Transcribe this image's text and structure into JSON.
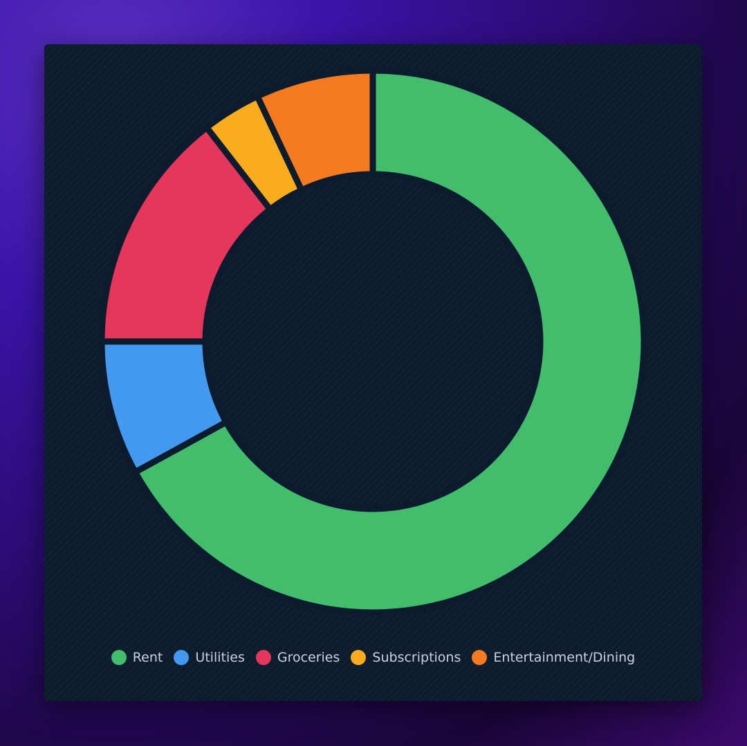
{
  "chart_data": {
    "type": "donut",
    "categories": [
      "Rent",
      "Utilities",
      "Groceries",
      "Subscriptions",
      "Entertainment/Dining"
    ],
    "values": [
      67,
      8,
      14.5,
      3.5,
      7
    ],
    "colors": [
      "#41bd6c",
      "#4299ef",
      "#e5375b",
      "#f9ac1c",
      "#f47b20"
    ]
  }
}
